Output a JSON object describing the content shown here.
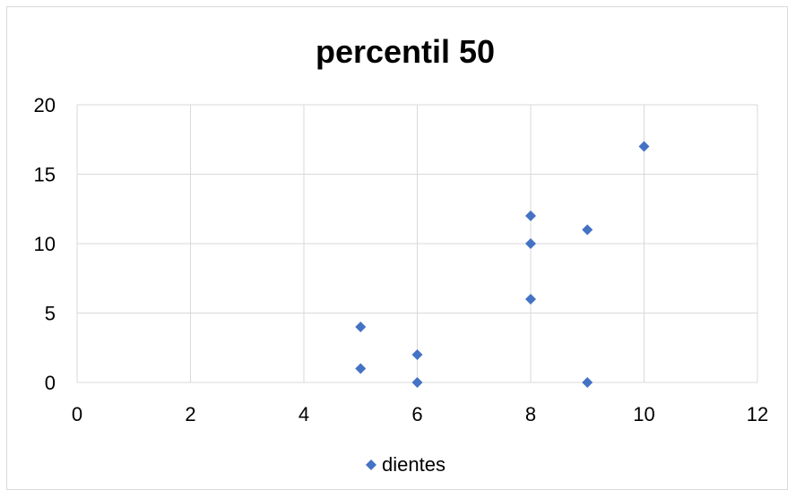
{
  "chart_data": {
    "type": "scatter",
    "title": "percentil 50",
    "xlabel": "",
    "ylabel": "",
    "xlim": [
      0,
      12
    ],
    "ylim": [
      0,
      20
    ],
    "x_ticks": [
      0,
      2,
      4,
      6,
      8,
      10,
      12
    ],
    "y_ticks": [
      0,
      5,
      10,
      15,
      20
    ],
    "grid": true,
    "legend_position": "bottom",
    "series": [
      {
        "name": "dientes",
        "color": "#4472c4",
        "marker": "diamond",
        "points": [
          {
            "x": 5,
            "y": 4
          },
          {
            "x": 5,
            "y": 1
          },
          {
            "x": 6,
            "y": 2
          },
          {
            "x": 6,
            "y": 0
          },
          {
            "x": 8,
            "y": 12
          },
          {
            "x": 8,
            "y": 10
          },
          {
            "x": 8,
            "y": 6
          },
          {
            "x": 9,
            "y": 11
          },
          {
            "x": 9,
            "y": 0
          },
          {
            "x": 10,
            "y": 17
          }
        ]
      }
    ]
  }
}
